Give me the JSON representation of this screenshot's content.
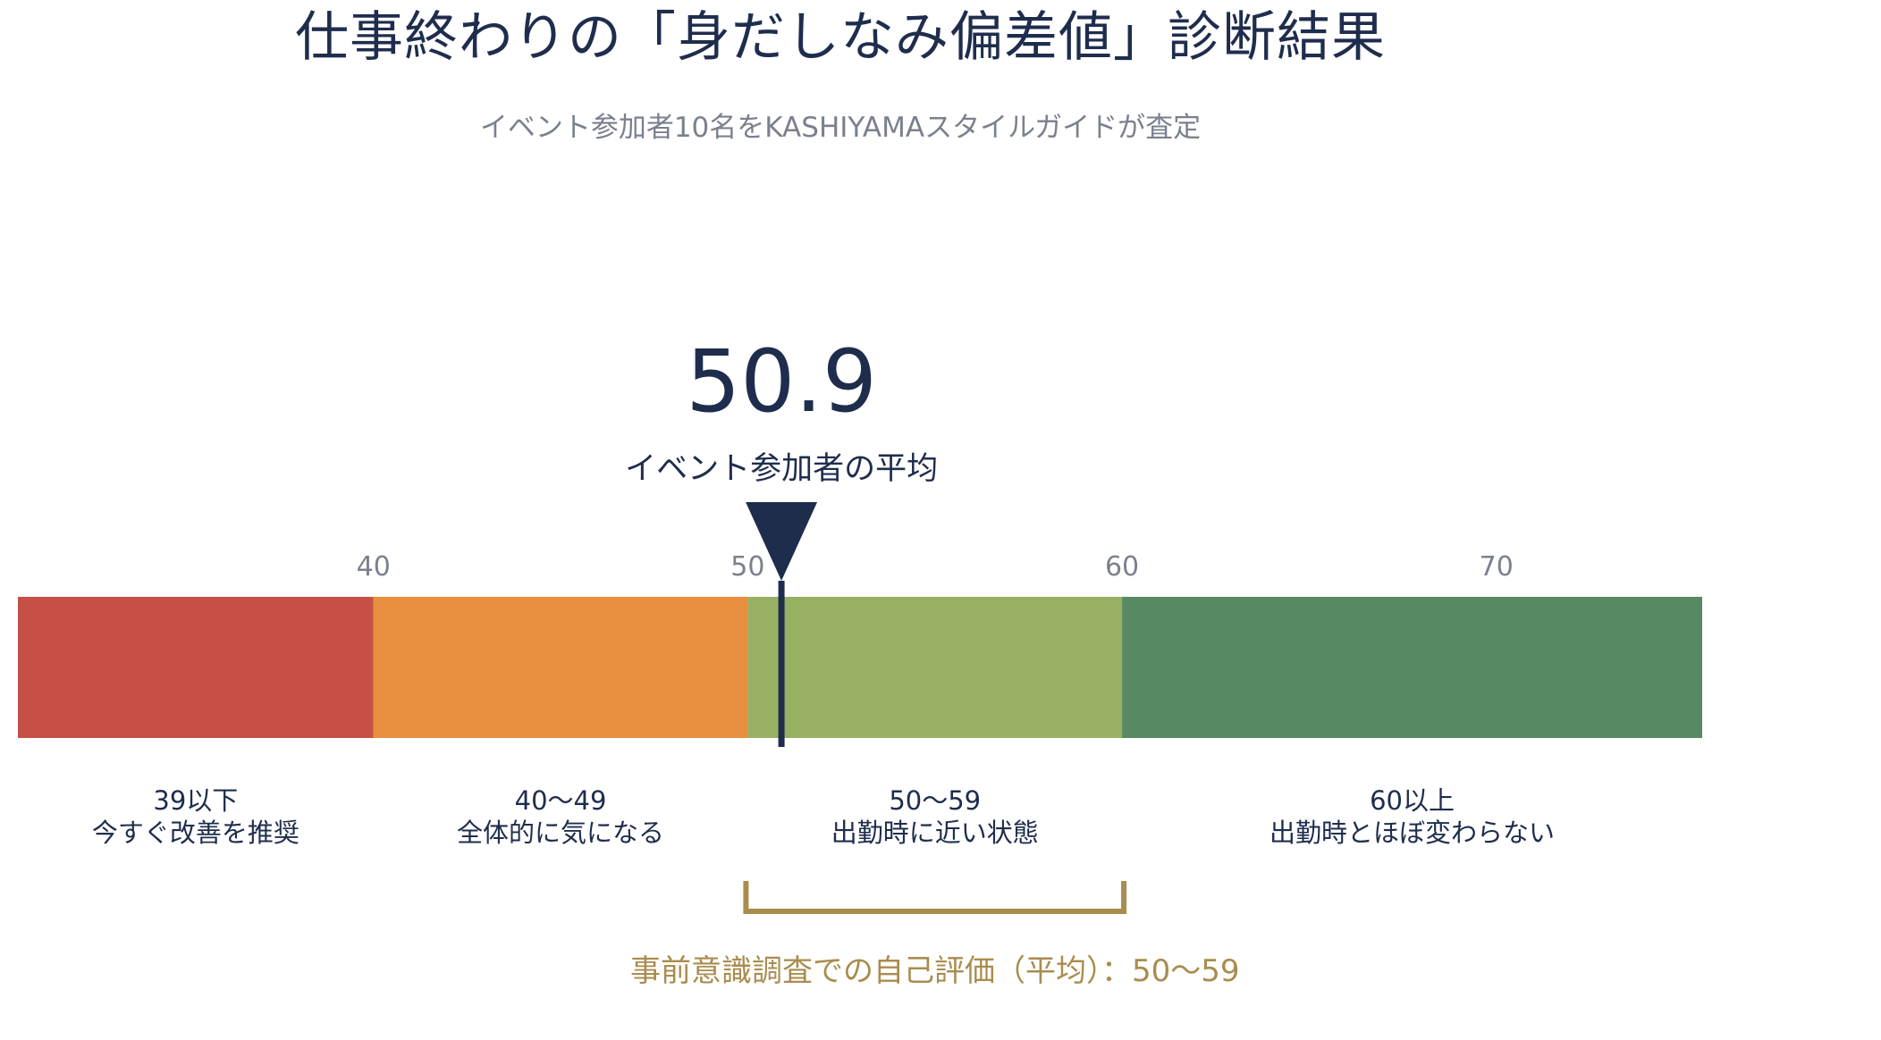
{
  "title": "仕事終わりの「身だしなみ偏差値」診断結果",
  "subtitle": "イベント参加者10名をKASHIYAMAスタイルガイドが査定",
  "chart_data": {
    "type": "gauge",
    "axis": {
      "min": 30.5,
      "max": 75.5,
      "ticks": [
        40,
        50,
        60,
        70
      ]
    },
    "zones": [
      {
        "from": 30.5,
        "to": 40,
        "range": "39以下",
        "description": "今すぐ改善を推奨",
        "color": "#c65046"
      },
      {
        "from": 40,
        "to": 50,
        "range": "40〜49",
        "description": "全体的に気になる",
        "color": "#e88f3f"
      },
      {
        "from": 50,
        "to": 60,
        "range": "50〜59",
        "description": "出勤時に近い状態",
        "color": "#98b062"
      },
      {
        "from": 60,
        "to": 75.5,
        "range": "60以上",
        "description": "出勤時とほぼ変わらない",
        "color": "#578962"
      }
    ],
    "marker": {
      "value": 50.9,
      "value_text": "50.9",
      "label": "イベント参加者の平均",
      "color": "#1f2d4d"
    },
    "self_assessment": {
      "from": 50,
      "to": 59,
      "label": "事前意識調査での自己評価（平均）：50〜59",
      "color": "#a98c4e"
    }
  }
}
